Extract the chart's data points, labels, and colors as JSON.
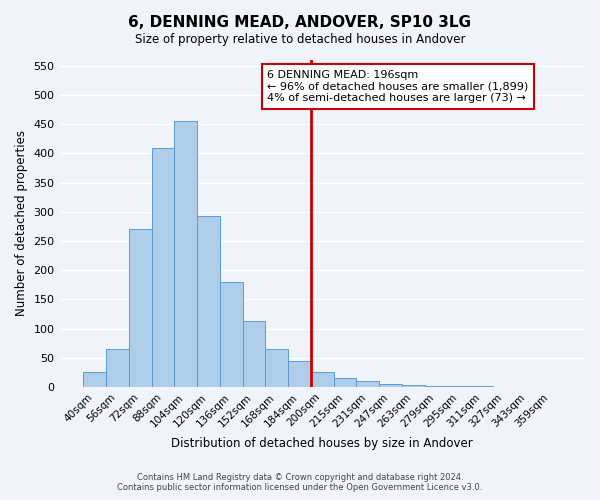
{
  "title": "6, DENNING MEAD, ANDOVER, SP10 3LG",
  "subtitle": "Size of property relative to detached houses in Andover",
  "xlabel": "Distribution of detached houses by size in Andover",
  "ylabel": "Number of detached properties",
  "bin_labels": [
    "40sqm",
    "56sqm",
    "72sqm",
    "88sqm",
    "104sqm",
    "120sqm",
    "136sqm",
    "152sqm",
    "168sqm",
    "184sqm",
    "200sqm",
    "215sqm",
    "231sqm",
    "247sqm",
    "263sqm",
    "279sqm",
    "295sqm",
    "311sqm",
    "327sqm",
    "343sqm",
    "359sqm"
  ],
  "bar_heights": [
    25,
    65,
    270,
    410,
    455,
    293,
    180,
    113,
    65,
    45,
    25,
    15,
    10,
    5,
    3,
    2,
    1,
    1,
    0,
    0,
    0
  ],
  "bar_color": "#aecde8",
  "bar_edge_color": "#5b9bd5",
  "vline_color": "#cc0000",
  "vline_x_index": 9.5,
  "ylim": [
    0,
    560
  ],
  "yticks": [
    0,
    50,
    100,
    150,
    200,
    250,
    300,
    350,
    400,
    450,
    500,
    550
  ],
  "annotation_title": "6 DENNING MEAD: 196sqm",
  "annotation_line1": "← 96% of detached houses are smaller (1,899)",
  "annotation_line2": "4% of semi-detached houses are larger (73) →",
  "annotation_box_color": "#ffffff",
  "annotation_box_edge": "#cc0000",
  "footer_line1": "Contains HM Land Registry data © Crown copyright and database right 2024.",
  "footer_line2": "Contains public sector information licensed under the Open Government Licence v3.0.",
  "bg_color": "#f0f4fa",
  "grid_color": "#ffffff"
}
